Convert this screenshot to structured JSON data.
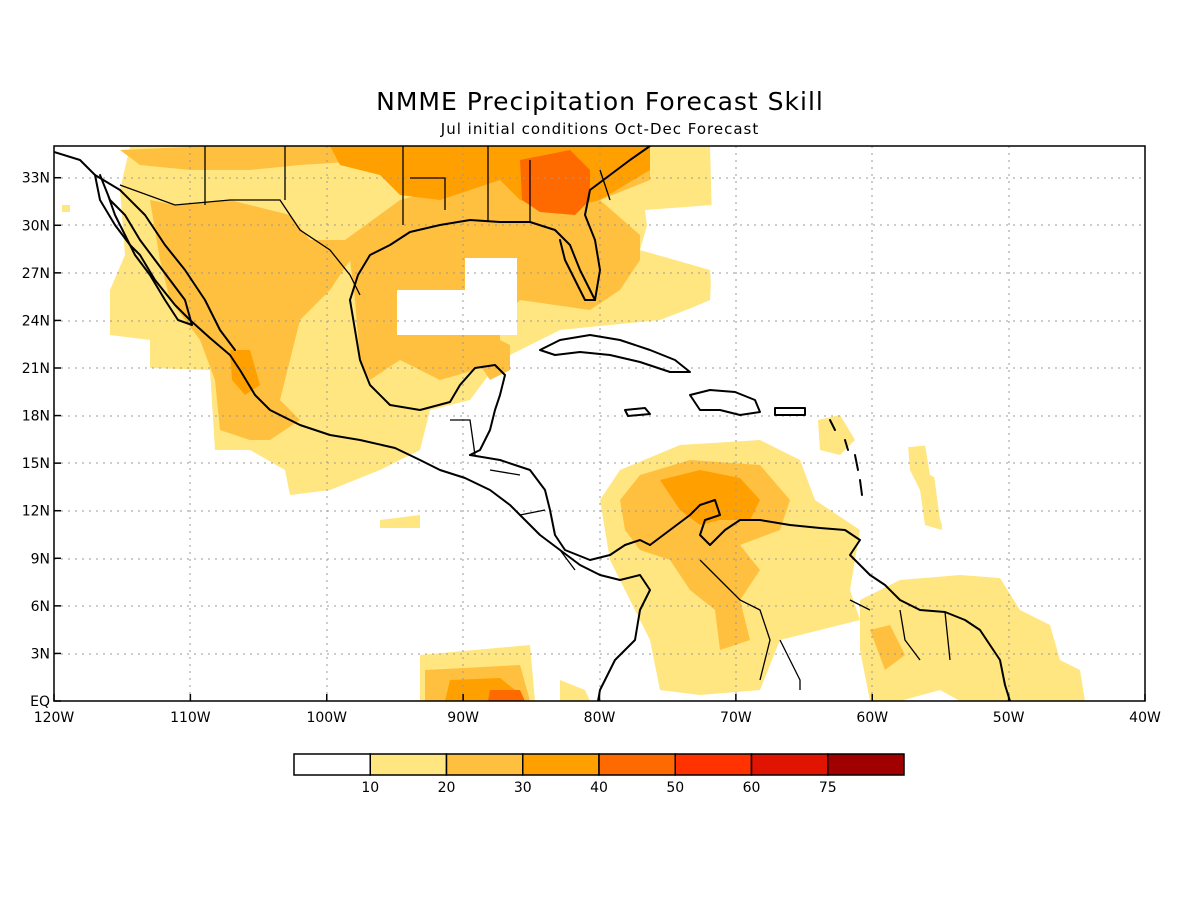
{
  "title": "NMME Precipitation Forecast Skill",
  "subtitle": "Jul initial conditions  Oct-Dec Forecast",
  "map": {
    "lon_range": [
      -120,
      -40
    ],
    "lat_range": [
      0,
      35
    ],
    "lon_ticks": [
      {
        "value": -120,
        "label": "120W"
      },
      {
        "value": -110,
        "label": "110W"
      },
      {
        "value": -100,
        "label": "100W"
      },
      {
        "value": -90,
        "label": "90W"
      },
      {
        "value": -80,
        "label": "80W"
      },
      {
        "value": -70,
        "label": "70W"
      },
      {
        "value": -60,
        "label": "60W"
      },
      {
        "value": -50,
        "label": "50W"
      },
      {
        "value": -40,
        "label": "40W"
      }
    ],
    "lat_ticks": [
      {
        "value": 0,
        "label": "EQ"
      },
      {
        "value": 3,
        "label": "3N"
      },
      {
        "value": 6,
        "label": "6N"
      },
      {
        "value": 9,
        "label": "9N"
      },
      {
        "value": 12,
        "label": "12N"
      },
      {
        "value": 15,
        "label": "15N"
      },
      {
        "value": 18,
        "label": "18N"
      },
      {
        "value": 21,
        "label": "21N"
      },
      {
        "value": 24,
        "label": "24N"
      },
      {
        "value": 27,
        "label": "27N"
      },
      {
        "value": 30,
        "label": "30N"
      },
      {
        "value": 33,
        "label": "33N"
      }
    ],
    "grid": true
  },
  "legend": {
    "colors": [
      "#ffffff",
      "#ffe680",
      "#ffc040",
      "#ffa000",
      "#ff6a00",
      "#ff3200",
      "#e01400",
      "#a00000"
    ],
    "labels": [
      "10",
      "20",
      "30",
      "40",
      "50",
      "60",
      "75"
    ]
  }
}
